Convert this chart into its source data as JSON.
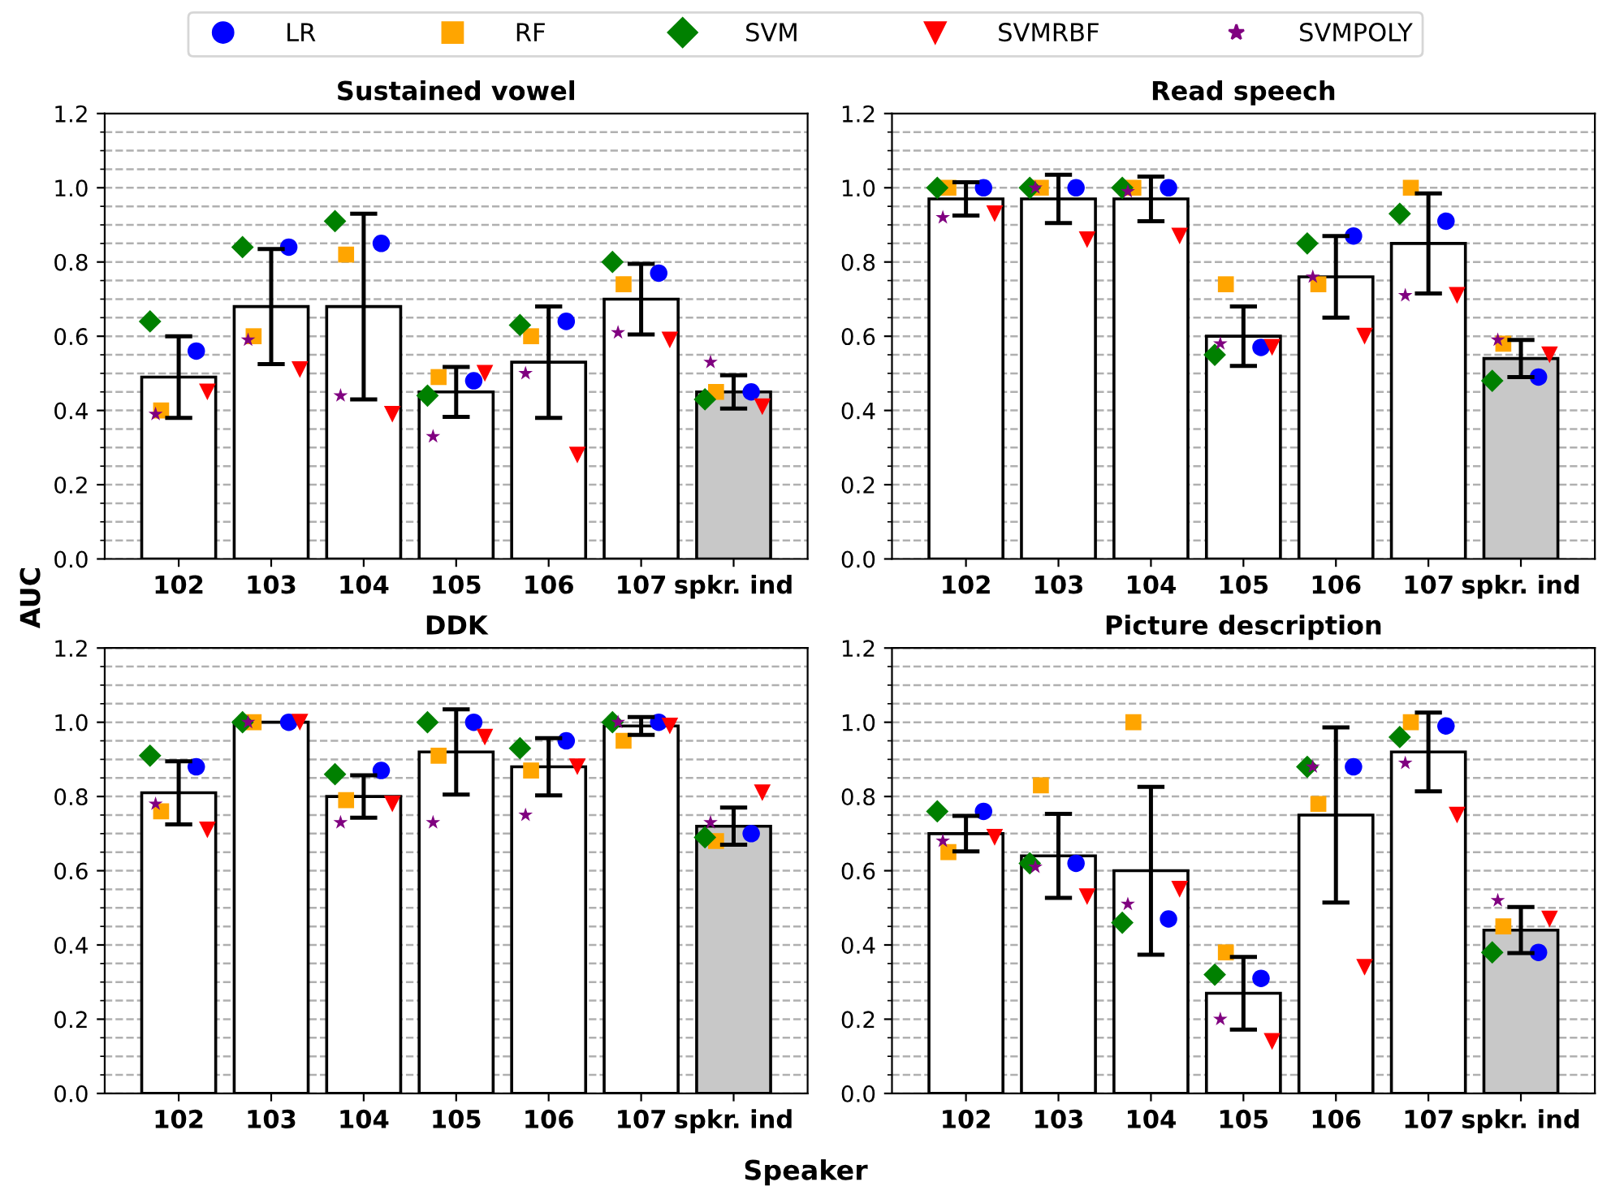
{
  "chart_data": [
    {
      "type": "bar",
      "title": "Sustained vowel",
      "ylabel": "AUC",
      "legend": "top",
      "grid": "y",
      "categories": [
        "102",
        "103",
        "104",
        "105",
        "106",
        "107",
        "spkr. ind"
      ],
      "ylim": [
        0,
        1.2
      ],
      "yticks": [
        {
          "value": 0,
          "label": "0.0"
        },
        {
          "value": 0.05,
          "label": null
        },
        {
          "value": 0.1,
          "label": null
        },
        {
          "value": 0.15,
          "label": null
        },
        0.2,
        {
          "value": 0.25,
          "label": null
        },
        {
          "value": 0.3,
          "label": null
        },
        {
          "value": 0.35,
          "label": null
        },
        0.4,
        {
          "value": 0.45,
          "label": null
        },
        {
          "value": 0.5,
          "label": null
        },
        {
          "value": 0.55,
          "label": null
        },
        0.6,
        {
          "value": 0.65,
          "label": null
        },
        {
          "value": 0.7,
          "label": null
        },
        {
          "value": 0.75,
          "label": null
        },
        0.8,
        {
          "value": 0.85,
          "label": null
        },
        {
          "value": 0.9,
          "label": null
        },
        {
          "value": 0.95,
          "label": null
        },
        {
          "value": 1,
          "label": "1.0"
        },
        {
          "value": 1.05,
          "label": null
        },
        {
          "value": 1.1,
          "label": null
        },
        {
          "value": 1.15,
          "label": null
        },
        1.2
      ],
      "series": [
        {
          "values": [
            0.49,
            0.68,
            0.68,
            0.45,
            0.53,
            0.7,
            0.45
          ],
          "colors": [
            "#ffffff",
            "#ffffff",
            "#ffffff",
            "#ffffff",
            "#ffffff",
            "#ffffff",
            "#c8c8c8"
          ],
          "errors": [
            0.11,
            0.155,
            0.25,
            0.067,
            0.15,
            0.095,
            0.045
          ]
        },
        {
          "type": "scatter",
          "name": "LR",
          "color": "#0000ff",
          "marker": "circle",
          "values": [
            0.56,
            0.84,
            0.85,
            0.48,
            0.64,
            0.77,
            0.45
          ]
        },
        {
          "type": "scatter",
          "name": "RF",
          "color": "#ffa500",
          "marker": "square",
          "values": [
            0.4,
            0.6,
            0.82,
            0.49,
            0.6,
            0.74,
            0.45
          ]
        },
        {
          "type": "scatter",
          "name": "SVM",
          "color": "#008000",
          "marker": "diamond",
          "values": [
            0.64,
            0.84,
            0.91,
            0.44,
            0.63,
            0.8,
            0.43
          ]
        },
        {
          "type": "scatter",
          "name": "SVMRBF",
          "color": "#ff0000",
          "marker": "triangle",
          "values": [
            0.45,
            0.51,
            0.39,
            0.5,
            0.28,
            0.59,
            0.41
          ]
        },
        {
          "type": "scatter",
          "name": "SVMPOLY",
          "color": "#800080",
          "marker": "star",
          "values": [
            0.39,
            0.59,
            0.44,
            0.33,
            0.5,
            0.61,
            0.53
          ]
        }
      ]
    },
    {
      "type": "bar",
      "title": "Read speech",
      "grid": "y",
      "categories": [
        "102",
        "103",
        "104",
        "105",
        "106",
        "107",
        "spkr. ind"
      ],
      "ylim": [
        0,
        1.2
      ],
      "yticks": [
        {
          "value": 0,
          "label": "0.0"
        },
        {
          "value": 0.05,
          "label": null
        },
        {
          "value": 0.1,
          "label": null
        },
        {
          "value": 0.15,
          "label": null
        },
        0.2,
        {
          "value": 0.25,
          "label": null
        },
        {
          "value": 0.3,
          "label": null
        },
        {
          "value": 0.35,
          "label": null
        },
        0.4,
        {
          "value": 0.45,
          "label": null
        },
        {
          "value": 0.5,
          "label": null
        },
        {
          "value": 0.55,
          "label": null
        },
        0.6,
        {
          "value": 0.65,
          "label": null
        },
        {
          "value": 0.7,
          "label": null
        },
        {
          "value": 0.75,
          "label": null
        },
        0.8,
        {
          "value": 0.85,
          "label": null
        },
        {
          "value": 0.9,
          "label": null
        },
        {
          "value": 0.95,
          "label": null
        },
        {
          "value": 1,
          "label": "1.0"
        },
        {
          "value": 1.05,
          "label": null
        },
        {
          "value": 1.1,
          "label": null
        },
        {
          "value": 1.15,
          "label": null
        },
        1.2
      ],
      "series": [
        {
          "values": [
            0.97,
            0.97,
            0.97,
            0.6,
            0.76,
            0.85,
            0.54
          ],
          "colors": [
            "#ffffff",
            "#ffffff",
            "#ffffff",
            "#ffffff",
            "#ffffff",
            "#ffffff",
            "#c8c8c8"
          ],
          "errors": [
            0.045,
            0.065,
            0.06,
            0.08,
            0.11,
            0.135,
            0.05
          ]
        },
        {
          "type": "scatter",
          "color": "#0000ff",
          "marker": "circle",
          "values": [
            1.0,
            1.0,
            1.0,
            0.57,
            0.87,
            0.91,
            0.49
          ]
        },
        {
          "type": "scatter",
          "color": "#ffa500",
          "marker": "square",
          "values": [
            1.0,
            1.0,
            1.0,
            0.74,
            0.74,
            1.0,
            0.58
          ]
        },
        {
          "type": "scatter",
          "color": "#008000",
          "marker": "diamond",
          "values": [
            1.0,
            1.0,
            1.0,
            0.55,
            0.85,
            0.93,
            0.48
          ]
        },
        {
          "type": "scatter",
          "color": "#ff0000",
          "marker": "triangle",
          "values": [
            0.93,
            0.86,
            0.87,
            0.57,
            0.6,
            0.71,
            0.55
          ]
        },
        {
          "type": "scatter",
          "color": "#800080",
          "marker": "star",
          "values": [
            0.92,
            1.0,
            0.99,
            0.58,
            0.76,
            0.71,
            0.59
          ]
        }
      ]
    },
    {
      "type": "bar",
      "title": "DDK",
      "xlabel": "Speaker",
      "grid": "y",
      "categories": [
        "102",
        "103",
        "104",
        "105",
        "106",
        "107",
        "spkr. ind"
      ],
      "ylim": [
        0,
        1.2
      ],
      "yticks": [
        {
          "value": 0,
          "label": "0.0"
        },
        {
          "value": 0.05,
          "label": null
        },
        {
          "value": 0.1,
          "label": null
        },
        {
          "value": 0.15,
          "label": null
        },
        0.2,
        {
          "value": 0.25,
          "label": null
        },
        {
          "value": 0.3,
          "label": null
        },
        {
          "value": 0.35,
          "label": null
        },
        0.4,
        {
          "value": 0.45,
          "label": null
        },
        {
          "value": 0.5,
          "label": null
        },
        {
          "value": 0.55,
          "label": null
        },
        0.6,
        {
          "value": 0.65,
          "label": null
        },
        {
          "value": 0.7,
          "label": null
        },
        {
          "value": 0.75,
          "label": null
        },
        0.8,
        {
          "value": 0.85,
          "label": null
        },
        {
          "value": 0.9,
          "label": null
        },
        {
          "value": 0.95,
          "label": null
        },
        {
          "value": 1,
          "label": "1.0"
        },
        {
          "value": 1.05,
          "label": null
        },
        {
          "value": 1.1,
          "label": null
        },
        {
          "value": 1.15,
          "label": null
        },
        1.2
      ],
      "series": [
        {
          "values": [
            0.81,
            1.0,
            0.8,
            0.92,
            0.88,
            0.99,
            0.72
          ],
          "colors": [
            "#ffffff",
            "#ffffff",
            "#ffffff",
            "#ffffff",
            "#ffffff",
            "#ffffff",
            "#c8c8c8"
          ],
          "errors": [
            0.085,
            null,
            0.057,
            0.115,
            0.077,
            0.024,
            0.05
          ]
        },
        {
          "type": "scatter",
          "color": "#0000ff",
          "marker": "circle",
          "values": [
            0.88,
            1.0,
            0.87,
            1.0,
            0.95,
            1.0,
            0.7
          ]
        },
        {
          "type": "scatter",
          "color": "#ffa500",
          "marker": "square",
          "values": [
            0.76,
            1.0,
            0.79,
            0.91,
            0.87,
            0.95,
            0.68
          ]
        },
        {
          "type": "scatter",
          "color": "#008000",
          "marker": "diamond",
          "values": [
            0.91,
            1.0,
            0.86,
            1.0,
            0.93,
            1.0,
            0.69
          ]
        },
        {
          "type": "scatter",
          "color": "#ff0000",
          "marker": "triangle",
          "values": [
            0.71,
            1.0,
            0.78,
            0.96,
            0.88,
            0.99,
            0.81
          ]
        },
        {
          "type": "scatter",
          "color": "#800080",
          "marker": "star",
          "values": [
            0.78,
            1.0,
            0.73,
            0.73,
            0.75,
            1.0,
            0.73
          ]
        }
      ]
    },
    {
      "type": "bar",
      "title": "Picture description",
      "grid": "y",
      "categories": [
        "102",
        "103",
        "104",
        "105",
        "106",
        "107",
        "spkr. ind"
      ],
      "ylim": [
        0,
        1.2
      ],
      "yticks": [
        {
          "value": 0,
          "label": "0.0"
        },
        {
          "value": 0.05,
          "label": null
        },
        {
          "value": 0.1,
          "label": null
        },
        {
          "value": 0.15,
          "label": null
        },
        0.2,
        {
          "value": 0.25,
          "label": null
        },
        {
          "value": 0.3,
          "label": null
        },
        {
          "value": 0.35,
          "label": null
        },
        0.4,
        {
          "value": 0.45,
          "label": null
        },
        {
          "value": 0.5,
          "label": null
        },
        {
          "value": 0.55,
          "label": null
        },
        0.6,
        {
          "value": 0.65,
          "label": null
        },
        {
          "value": 0.7,
          "label": null
        },
        {
          "value": 0.75,
          "label": null
        },
        0.8,
        {
          "value": 0.85,
          "label": null
        },
        {
          "value": 0.9,
          "label": null
        },
        {
          "value": 0.95,
          "label": null
        },
        {
          "value": 1,
          "label": "1.0"
        },
        {
          "value": 1.05,
          "label": null
        },
        {
          "value": 1.1,
          "label": null
        },
        {
          "value": 1.15,
          "label": null
        },
        1.2
      ],
      "series": [
        {
          "values": [
            0.7,
            0.64,
            0.6,
            0.27,
            0.75,
            0.92,
            0.44
          ],
          "colors": [
            "#ffffff",
            "#ffffff",
            "#ffffff",
            "#ffffff",
            "#ffffff",
            "#ffffff",
            "#c8c8c8"
          ],
          "errors": [
            0.048,
            0.113,
            0.226,
            0.098,
            0.236,
            0.106,
            0.062
          ]
        },
        {
          "type": "scatter",
          "color": "#0000ff",
          "marker": "circle",
          "values": [
            0.76,
            0.62,
            0.47,
            0.31,
            0.88,
            0.99,
            0.38
          ]
        },
        {
          "type": "scatter",
          "color": "#ffa500",
          "marker": "square",
          "values": [
            0.65,
            0.83,
            1.0,
            0.38,
            0.78,
            1.0,
            0.45
          ]
        },
        {
          "type": "scatter",
          "color": "#008000",
          "marker": "diamond",
          "values": [
            0.76,
            0.62,
            0.46,
            0.32,
            0.88,
            0.96,
            0.38
          ]
        },
        {
          "type": "scatter",
          "color": "#ff0000",
          "marker": "triangle",
          "values": [
            0.69,
            0.53,
            0.55,
            0.14,
            0.34,
            0.75,
            0.47
          ]
        },
        {
          "type": "scatter",
          "color": "#800080",
          "marker": "star",
          "values": [
            0.68,
            0.61,
            0.51,
            0.2,
            0.88,
            0.89,
            0.52
          ]
        }
      ]
    }
  ]
}
